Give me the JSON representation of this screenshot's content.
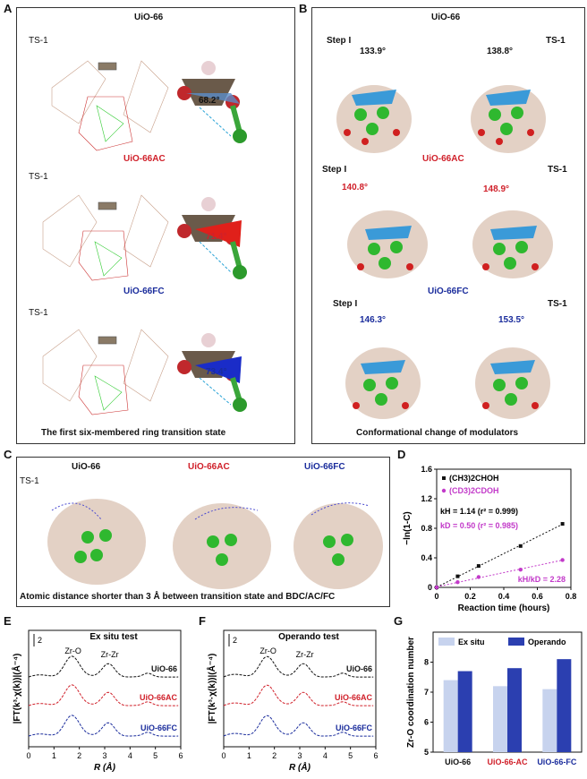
{
  "panels": {
    "A": {
      "letter": "A",
      "title": "UiO-66",
      "ts1_a": "TS-1",
      "mid_title": "UiO-66AC",
      "ts1_b": "TS-1",
      "bot_title": "UiO-66FC",
      "ts1_c": "TS-1",
      "angle_1": "68.2°",
      "angle_2": "71.4°",
      "angle_3": "73.4°",
      "caption": "The first six-membered ring transition state"
    },
    "B": {
      "letter": "B",
      "title": "UiO-66",
      "step1": "Step I",
      "ts1": "TS-1",
      "angle_1": "133.9°",
      "angle_2": "138.8°",
      "mid_title": "UiO-66AC",
      "step2": "Step I",
      "ts2": "TS-1",
      "angle_3": "140.8°",
      "angle_4": "148.9°",
      "bot_title": "UiO-66FC",
      "step3": "Step I",
      "ts3": "TS-1",
      "angle_5": "146.3°",
      "angle_6": "153.5°",
      "caption": "Conformational change of modulators"
    },
    "C": {
      "letter": "C",
      "t1": "UiO-66",
      "t2": "UiO-66AC",
      "t3": "UiO-66FC",
      "ts": "TS-1",
      "caption": "Atomic distance shorter than 3 Å between transition state and BDC/AC/FC"
    },
    "D": {
      "letter": "D"
    },
    "E": {
      "letter": "E",
      "title": "Ex situ test",
      "peak1": "Zr-O",
      "peak2": "Zr-Zr",
      "scale": "2"
    },
    "F": {
      "letter": "F",
      "title": "Operando test",
      "peak1": "Zr-O",
      "peak2": "Zr-Zr",
      "scale": "2"
    },
    "G": {
      "letter": "G"
    }
  },
  "chart_data": [
    {
      "id": "D",
      "type": "scatter",
      "xlabel": "Reaction time (hours)",
      "ylabel": "−ln(1-C)",
      "xlim": [
        0,
        0.8
      ],
      "ylim": [
        0,
        1.6
      ],
      "xticks": [
        "0",
        "0.2",
        "0.4",
        "0.6",
        "0.8"
      ],
      "yticks": [
        "0",
        "0.4",
        "0.8",
        "1.2",
        "1.6"
      ],
      "legend": [
        "(CH3)2CHOH",
        "(CD3)2CDOH"
      ],
      "legend_position": "top-left",
      "annotations": {
        "kH": "kH = 1.14 (r² = 0.999)",
        "kD": "kD = 0.50 (r² = 0.985)",
        "ratio": "kH/kD = 2.28"
      },
      "series": [
        {
          "name": "(CH3)2CHOH",
          "color": "#111111",
          "x": [
            0,
            0.125,
            0.25,
            0.5,
            0.75
          ],
          "y": [
            0.0,
            0.15,
            0.29,
            0.56,
            0.86
          ]
        },
        {
          "name": "(CD3)2CDOH",
          "color": "#c239c9",
          "x": [
            0,
            0.125,
            0.25,
            0.5,
            0.75
          ],
          "y": [
            0.0,
            0.07,
            0.14,
            0.24,
            0.37
          ]
        }
      ]
    },
    {
      "id": "E",
      "type": "line",
      "xlabel": "R (Å)",
      "ylabel": "|FT(k³·χ(k))|(Å⁻⁴)",
      "xlim": [
        0,
        6
      ],
      "xticks": [
        "0",
        "1",
        "2",
        "3",
        "4",
        "5",
        "6"
      ],
      "series": [
        {
          "name": "UiO-66",
          "color": "#111111"
        },
        {
          "name": "UiO-66AC",
          "color": "#d0202a"
        },
        {
          "name": "UiO-66FC",
          "color": "#1a2c9c"
        }
      ]
    },
    {
      "id": "F",
      "type": "line",
      "xlabel": "R (Å)",
      "ylabel": "|FT(k³·χ(k))|(Å⁻⁴)",
      "xlim": [
        0,
        6
      ],
      "xticks": [
        "0",
        "1",
        "2",
        "3",
        "4",
        "5",
        "6"
      ],
      "series": [
        {
          "name": "UiO-66",
          "color": "#111111"
        },
        {
          "name": "UiO-66AC",
          "color": "#d0202a"
        },
        {
          "name": "UiO-66FC",
          "color": "#1a2c9c"
        }
      ]
    },
    {
      "id": "G",
      "type": "bar",
      "ylabel": "Zr-O coordination number",
      "ylim": [
        5,
        9
      ],
      "yticks": [
        "5",
        "6",
        "7",
        "8"
      ],
      "categories": [
        "UiO-66",
        "UiO-66-AC",
        "UiO-66-FC"
      ],
      "category_colors": [
        "#111111",
        "#d0202a",
        "#1a2c9c"
      ],
      "legend_position": "top",
      "series": [
        {
          "name": "Ex situ",
          "color": "#c7d3ee",
          "values": [
            7.4,
            7.2,
            7.1
          ]
        },
        {
          "name": "Operando",
          "color": "#2b3fb0",
          "values": [
            7.7,
            7.8,
            8.1
          ]
        }
      ]
    }
  ]
}
